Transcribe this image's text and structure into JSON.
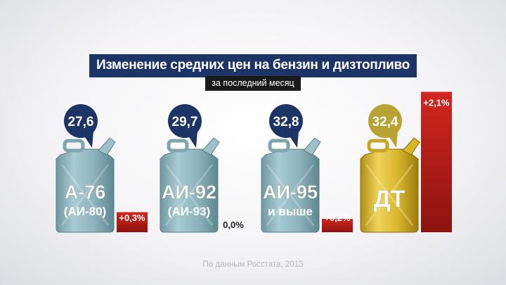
{
  "title": "Изменение средних цен на бензин и дизтопливо",
  "subtitle": "за последний месяц",
  "source": "По данным Росстата, 2013",
  "colors": {
    "navy": "#1d3566",
    "gold": "#b8a232",
    "red": "#b51e1a",
    "can_blue": "#8fb5bd",
    "can_gold": "#d5b528"
  },
  "chart_data": {
    "type": "bar",
    "title": "Изменение средних цен на бензин и дизтопливо",
    "subtitle": "за последний месяц",
    "categories": [
      "А-76 (АИ-80)",
      "АИ-92 (АИ-93)",
      "АИ-95 и выше",
      "ДТ"
    ],
    "series": [
      {
        "values": [
          0.3,
          0.0,
          0.2,
          2.1
        ]
      }
    ],
    "prices": [
      27.6,
      29.7,
      32.8,
      32.4
    ],
    "price_labels": [
      "27,6",
      "29,7",
      "32,8",
      "32,4"
    ],
    "change_labels": [
      "+0,3%",
      "0,0%",
      "+0,2%",
      "+2,1%"
    ],
    "can_labels": [
      [
        "А-76",
        "(АИ-80)"
      ],
      [
        "АИ-92",
        "(АИ-93)"
      ],
      [
        "АИ-95",
        "и выше"
      ],
      [
        "ДТ"
      ]
    ],
    "unit": "%"
  }
}
